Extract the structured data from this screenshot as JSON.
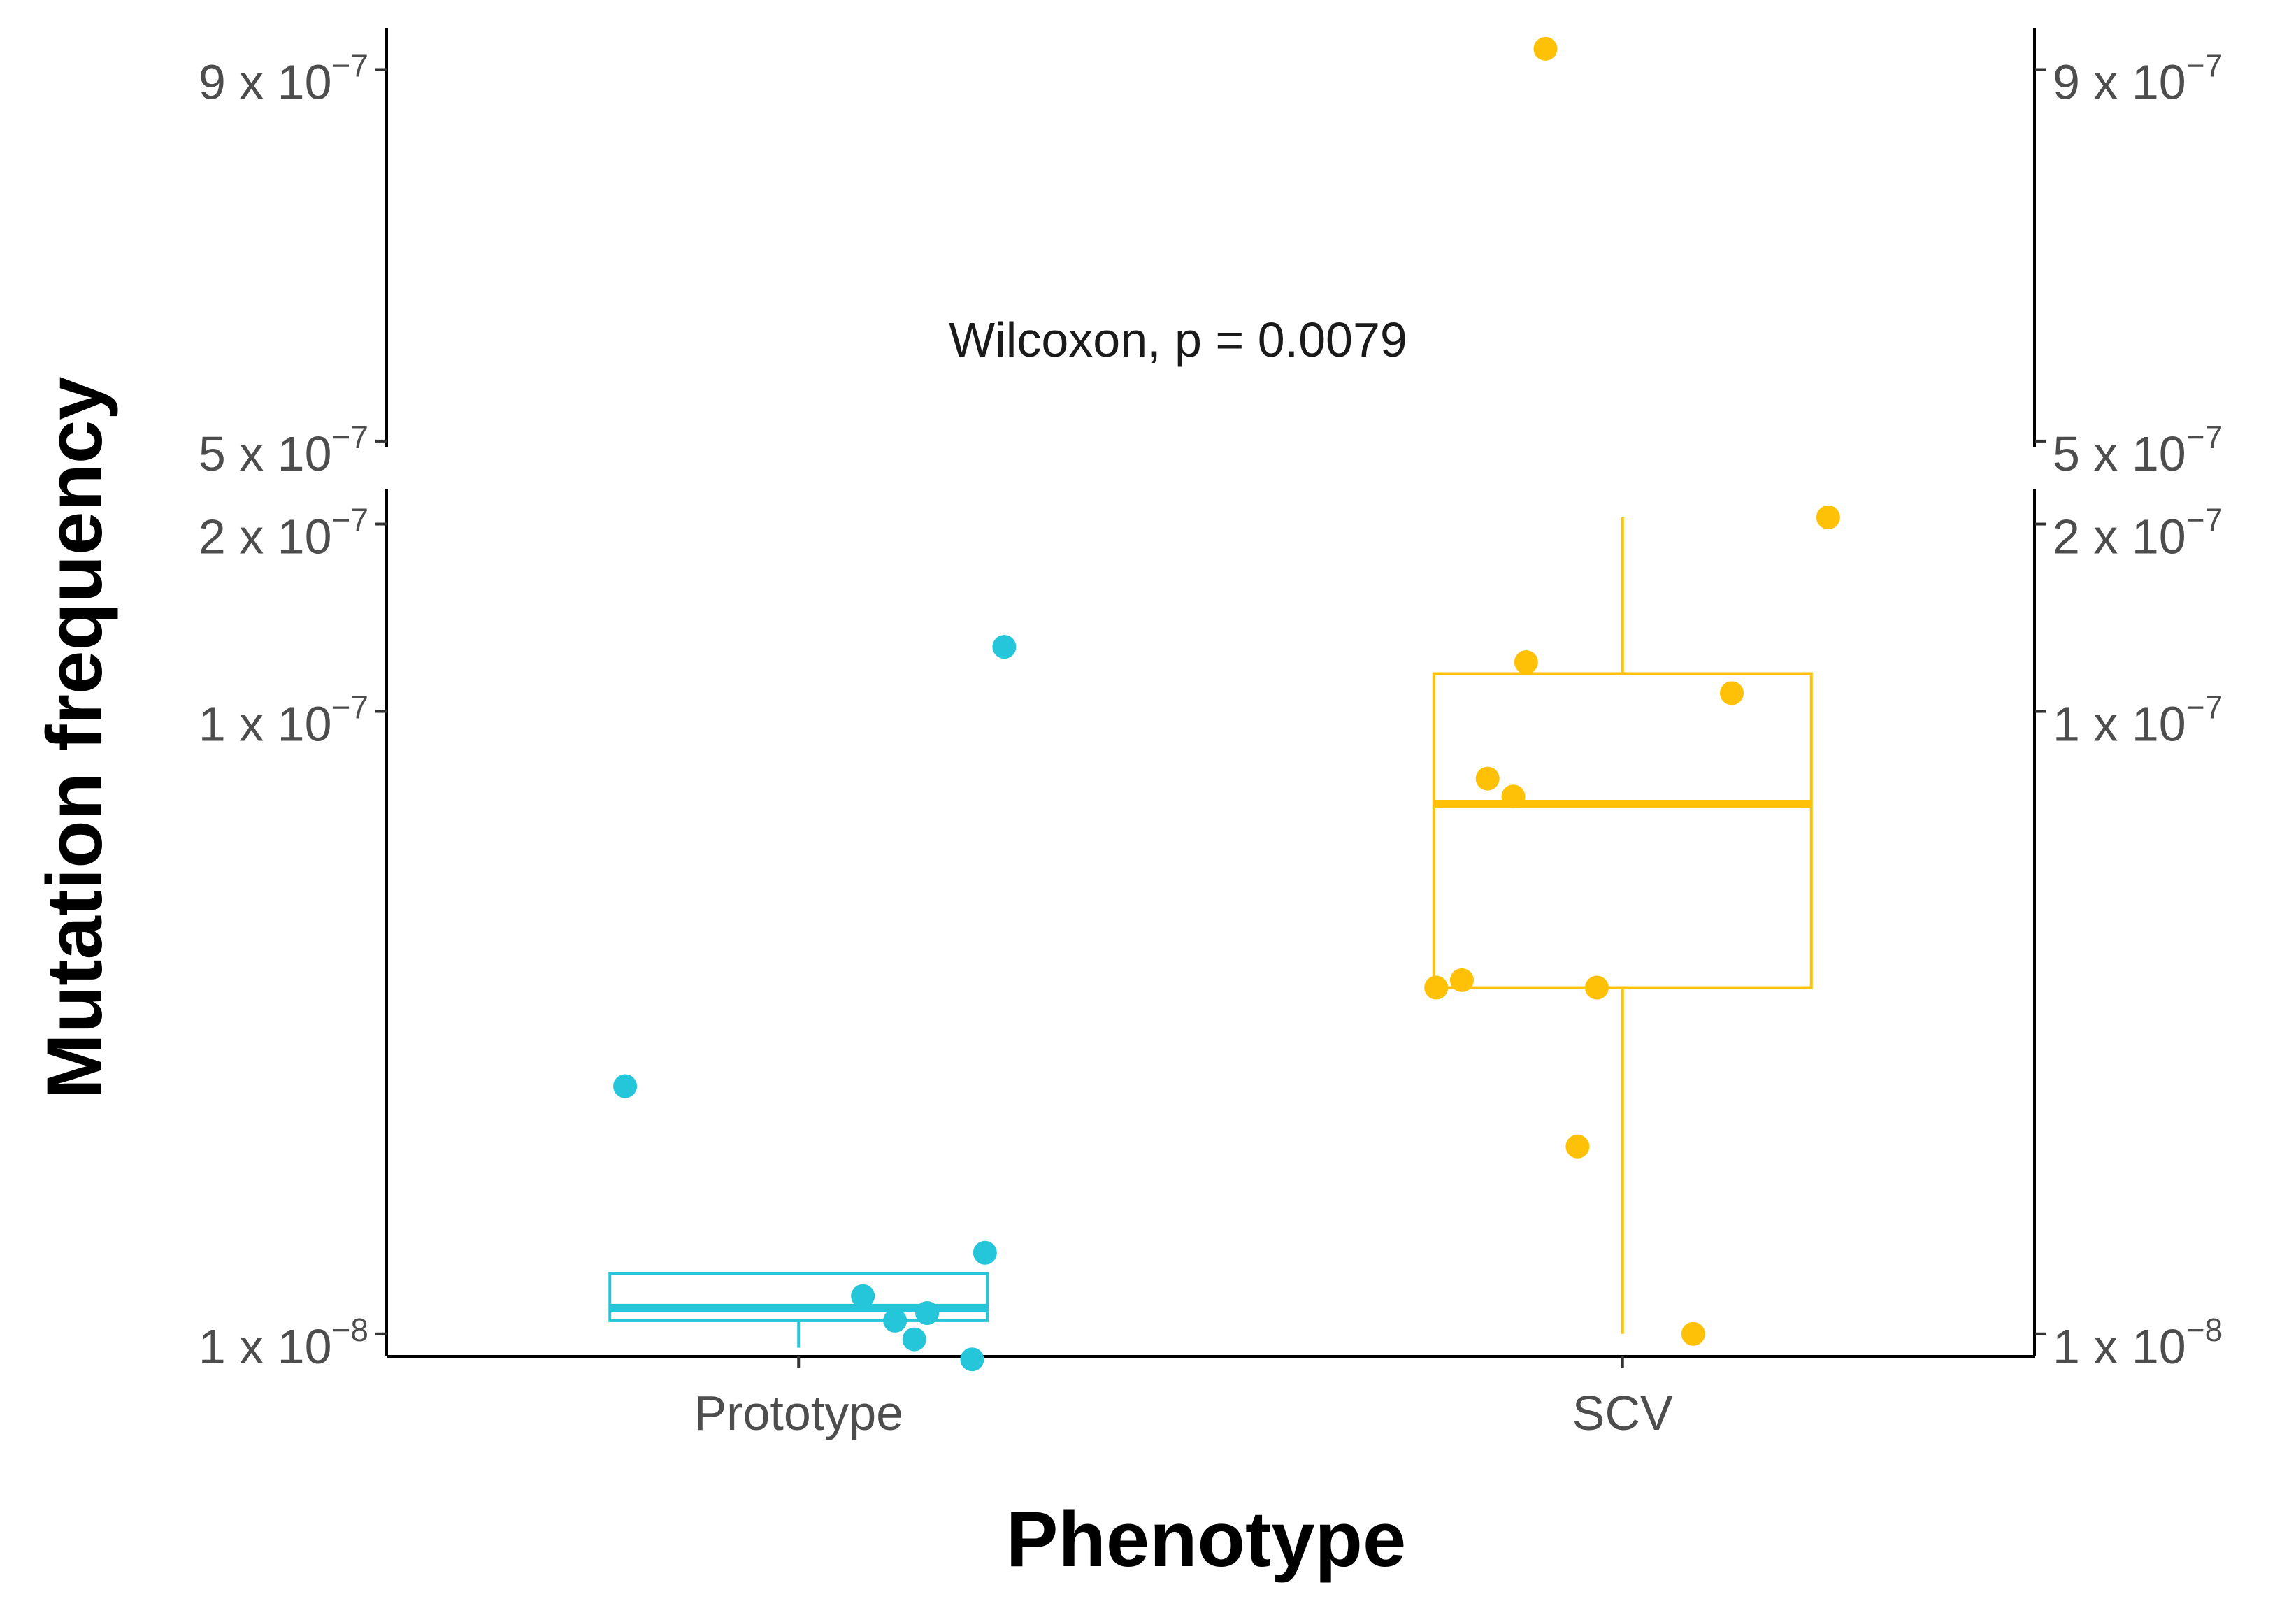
{
  "chart_data": {
    "type": "boxplot-jitter",
    "xlabel": "Phenotype",
    "ylabel": "Mutation frequency",
    "annotation": "Wilcoxon, p = 0.0079",
    "axis_break": {
      "lower_range": [
        9.2e-09,
        2.05e-07
      ],
      "upper_range": [
        4.95e-07,
        9.35e-07
      ]
    },
    "yticks": [
      {
        "value": 1e-08,
        "mant": "1",
        "exp": "−8",
        "times": " x 10"
      },
      {
        "value": 1e-07,
        "mant": "1",
        "exp": "−7",
        "times": " x 10"
      },
      {
        "value": 2e-07,
        "mant": "2",
        "exp": "−7",
        "times": " x 10"
      },
      {
        "value": 5e-07,
        "mant": "5",
        "exp": "−7",
        "times": " x 10"
      },
      {
        "value": 9e-07,
        "mant": "9",
        "exp": "−7",
        "times": " x 10"
      }
    ],
    "categories": [
      "Prototype",
      "SCV"
    ],
    "groups": [
      {
        "name": "Prototype",
        "color": "#26C6DA",
        "box": {
          "q1": 1.05e-08,
          "median": 1.1e-08,
          "q3": 1.25e-08,
          "whisker_low": 9.5e-09,
          "whisker_high": 1.25e-08
        },
        "points": [
          {
            "jitter": -0.27,
            "y": 2.5e-08
          },
          {
            "jitter": 0.32,
            "y": 1.27e-07
          },
          {
            "jitter": 0.29,
            "y": 1.35e-08
          },
          {
            "jitter": 0.1,
            "y": 1.15e-08
          },
          {
            "jitter": 0.15,
            "y": 1.05e-08
          },
          {
            "jitter": 0.18,
            "y": 9.8e-09
          },
          {
            "jitter": 0.2,
            "y": 1.08e-08
          },
          {
            "jitter": 0.27,
            "y": 9.1e-09
          }
        ]
      },
      {
        "name": "SCV",
        "color": "#FFC107",
        "box": {
          "q1": 3.6e-08,
          "median": 7.1e-08,
          "q3": 1.15e-07,
          "whisker_low": 1e-08,
          "whisker_high": 2.05e-07
        },
        "points": [
          {
            "jitter": -0.12,
            "y": 9.3e-07
          },
          {
            "jitter": 0.32,
            "y": 2.05e-07
          },
          {
            "jitter": -0.15,
            "y": 1.2e-07
          },
          {
            "jitter": 0.17,
            "y": 1.07e-07
          },
          {
            "jitter": -0.21,
            "y": 7.8e-08
          },
          {
            "jitter": -0.17,
            "y": 7.3e-08
          },
          {
            "jitter": -0.29,
            "y": 3.6e-08
          },
          {
            "jitter": -0.25,
            "y": 3.7e-08
          },
          {
            "jitter": -0.04,
            "y": 3.6e-08
          },
          {
            "jitter": -0.07,
            "y": 2e-08
          },
          {
            "jitter": 0.11,
            "y": 1e-08
          }
        ]
      }
    ]
  }
}
